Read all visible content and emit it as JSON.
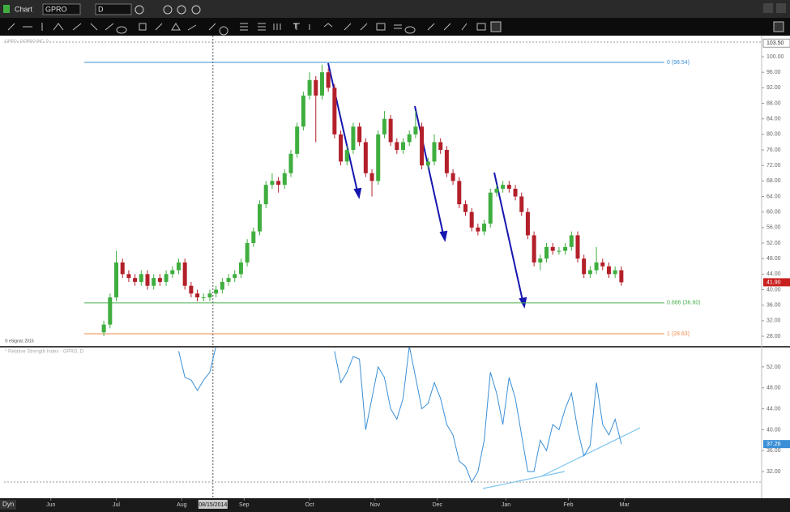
{
  "toolbar": {
    "window_title": "Chart",
    "symbol": "GPRO",
    "interval": "D"
  },
  "footer": {
    "mode": "Dyn"
  },
  "chart_data": [
    {
      "type": "candlestick",
      "title": "GPRO - GOPRO INC, D",
      "watermark": "© eSignal, 2015",
      "up_color": "#3fae3f",
      "down_color": "#b3202a",
      "xlim": [
        0,
        243
      ],
      "ylim": [
        25.5,
        104.6
      ],
      "yticks": [
        {
          "value": 100,
          "label": "100.00"
        },
        {
          "value": 96,
          "label": "96.00"
        },
        {
          "value": 92,
          "label": "92.00"
        },
        {
          "value": 88,
          "label": "88.00"
        },
        {
          "value": 84,
          "label": "84.00"
        },
        {
          "value": 80,
          "label": "80.00"
        },
        {
          "value": 76,
          "label": "76.00"
        },
        {
          "value": 72,
          "label": "72.00"
        },
        {
          "value": 68,
          "label": "68.00"
        },
        {
          "value": 64,
          "label": "64.00"
        },
        {
          "value": 60,
          "label": "60.00"
        },
        {
          "value": 56,
          "label": "56.00"
        },
        {
          "value": 52,
          "label": "52.00"
        },
        {
          "value": 48,
          "label": "48.00"
        },
        {
          "value": 44,
          "label": "44.00"
        },
        {
          "value": 40,
          "label": "40.00"
        },
        {
          "value": 36,
          "label": "36.00"
        },
        {
          "value": 32,
          "label": "32.00"
        },
        {
          "value": 28,
          "label": "28.00"
        }
      ],
      "top_label": {
        "value": 103.5,
        "label": "103.50"
      },
      "last": {
        "value": 41.9,
        "label": "41.90",
        "color": "#c8201e"
      },
      "crosshair": {
        "x": 67,
        "label": "08/15/2014"
      },
      "levels": [
        {
          "value": 98.54,
          "label": "0 (98.54)",
          "color": "#3a8fd6"
        },
        {
          "value": 36.6,
          "label": "0.886 (36.60)",
          "color": "#4caf50"
        },
        {
          "value": 28.63,
          "label": "1 (28.63)",
          "color": "#f08a4b"
        }
      ],
      "x": [
        32,
        34,
        36,
        38,
        40,
        42,
        44,
        46,
        48,
        50,
        52,
        54,
        56,
        58,
        60,
        62,
        64,
        66,
        68,
        70,
        72,
        74,
        76,
        78,
        80,
        82,
        84,
        86,
        88,
        90,
        92,
        94,
        96,
        98,
        100,
        102,
        104,
        106,
        108,
        110,
        112,
        114,
        116,
        118,
        120,
        122,
        124,
        126,
        128,
        130,
        132,
        134,
        136,
        138,
        140,
        142,
        144,
        146,
        148,
        150,
        152,
        154,
        156,
        158,
        160,
        162,
        164,
        166,
        168,
        170,
        172,
        174,
        176,
        178,
        180,
        182,
        184,
        186,
        188,
        190,
        192,
        194,
        196,
        198
      ],
      "open": [
        29,
        31,
        38,
        47,
        44,
        43,
        42,
        44,
        41,
        43,
        42,
        44,
        45,
        47,
        41,
        39,
        38,
        38,
        39,
        40,
        42,
        43,
        44,
        47,
        52,
        55,
        62,
        67,
        68,
        67,
        70,
        75,
        82,
        90,
        94,
        90,
        96,
        92,
        80,
        73,
        76,
        82,
        78,
        70,
        68,
        80,
        84,
        78,
        76,
        78,
        80,
        82,
        72,
        73,
        78,
        76,
        70,
        68,
        62,
        60,
        56,
        55,
        57,
        65,
        66,
        67,
        66,
        64,
        60,
        54,
        47,
        48,
        51,
        50,
        50,
        51,
        54,
        48,
        44,
        45,
        47,
        46,
        44,
        45
      ],
      "high": [
        32,
        39,
        50,
        48,
        45,
        44,
        45,
        45,
        44,
        44,
        45,
        46,
        48,
        48,
        42,
        40,
        39,
        40,
        41,
        43,
        44,
        45,
        48,
        53,
        56,
        63,
        68,
        70,
        69,
        71,
        76,
        83,
        91,
        96,
        95,
        98,
        97,
        93,
        81,
        77,
        83,
        83,
        79,
        71,
        81,
        86,
        85,
        79,
        79,
        81,
        86,
        83,
        74,
        80,
        79,
        77,
        71,
        69,
        63,
        61,
        57,
        58,
        66,
        67,
        68,
        68,
        67,
        65,
        61,
        55,
        49,
        52,
        52,
        51,
        52,
        55,
        55,
        49,
        46,
        51,
        48,
        47,
        46,
        46
      ],
      "low": [
        28,
        30,
        37,
        43,
        42,
        41,
        41,
        40,
        40,
        41,
        41,
        43,
        44,
        40,
        38,
        37,
        37,
        37,
        38,
        39,
        41,
        42,
        43,
        46,
        51,
        54,
        61,
        66,
        65,
        66,
        69,
        74,
        81,
        89,
        78,
        89,
        91,
        79,
        72,
        72,
        75,
        77,
        69,
        64,
        67,
        79,
        77,
        75,
        75,
        77,
        79,
        71,
        71,
        72,
        75,
        69,
        67,
        61,
        59,
        55,
        54,
        54,
        56,
        64,
        65,
        65,
        63,
        59,
        53,
        46,
        45,
        47,
        49,
        49,
        49,
        50,
        47,
        43,
        43,
        44,
        45,
        43,
        43,
        41
      ],
      "close": [
        31,
        38,
        47,
        44,
        43,
        42,
        44,
        41,
        43,
        42,
        44,
        45,
        47,
        41,
        39,
        38,
        38,
        39,
        40,
        42,
        43,
        44,
        47,
        52,
        55,
        62,
        67,
        68,
        67,
        70,
        75,
        82,
        90,
        94,
        90,
        96,
        92,
        80,
        73,
        76,
        82,
        78,
        70,
        68,
        80,
        84,
        78,
        76,
        78,
        80,
        82,
        72,
        73,
        78,
        76,
        70,
        68,
        62,
        60,
        56,
        55,
        57,
        65,
        66,
        67,
        66,
        64,
        60,
        54,
        47,
        48,
        51,
        50,
        50,
        51,
        54,
        48,
        44,
        45,
        47,
        46,
        44,
        45,
        41.9
      ]
    },
    {
      "type": "line",
      "title": "* Relative Strength Index - GPRO, D",
      "color": "#3a8fd6",
      "xlim": [
        0,
        243
      ],
      "ylim": [
        29.7,
        55.7
      ],
      "yticks": [
        {
          "value": 52,
          "label": "52.00"
        },
        {
          "value": 48,
          "label": "48.00"
        },
        {
          "value": 44,
          "label": "44.00"
        },
        {
          "value": 40,
          "label": "40.00"
        },
        {
          "value": 36,
          "label": "36.00"
        },
        {
          "value": 32,
          "label": "32.00"
        }
      ],
      "xticks": [
        {
          "value": 15,
          "label": "Jun"
        },
        {
          "value": 36,
          "label": "Jul"
        },
        {
          "value": 57,
          "label": "Aug"
        },
        {
          "value": 77,
          "label": "Sep"
        },
        {
          "value": 98,
          "label": "Oct"
        },
        {
          "value": 119,
          "label": "Nov"
        },
        {
          "value": 139,
          "label": "Dec"
        },
        {
          "value": 161,
          "label": "Jan"
        },
        {
          "value": 181,
          "label": "Feb"
        },
        {
          "value": 199,
          "label": "Mar"
        }
      ],
      "last": {
        "value": 37.26,
        "label": "37.26",
        "color": "#3a8fd6"
      },
      "x": [
        32,
        34,
        36,
        38,
        40,
        42,
        44,
        46,
        48,
        50,
        52,
        54,
        56,
        58,
        60,
        62,
        64,
        66,
        68,
        70,
        72,
        74,
        76,
        78,
        80,
        82,
        84,
        86,
        88,
        90,
        92,
        94,
        96,
        98,
        100,
        102,
        104,
        106,
        108,
        110,
        112,
        114,
        116,
        118,
        120,
        122,
        124,
        126,
        128,
        130,
        132,
        134,
        136,
        138,
        140,
        142,
        144,
        146,
        148,
        150,
        152,
        154,
        156,
        158,
        160,
        162,
        164,
        166,
        168,
        170,
        172,
        174,
        176,
        178,
        180,
        182,
        184,
        186,
        188,
        190,
        192,
        194,
        196,
        198
      ],
      "values": [
        null,
        null,
        null,
        null,
        null,
        null,
        null,
        null,
        null,
        null,
        null,
        null,
        55,
        50,
        49.5,
        47.5,
        49.5,
        51,
        56,
        null,
        null,
        null,
        null,
        null,
        null,
        null,
        null,
        null,
        null,
        null,
        null,
        null,
        null,
        null,
        null,
        null,
        null,
        55,
        49,
        51,
        54,
        53.5,
        40,
        46,
        52,
        50,
        44,
        42,
        46,
        56,
        50,
        44,
        45,
        49,
        46,
        41,
        39,
        34,
        33,
        30,
        32,
        38,
        51,
        47,
        41,
        50,
        46,
        39,
        32,
        32,
        38,
        36,
        41,
        40,
        44,
        47,
        40,
        35,
        37,
        49,
        41,
        39,
        42,
        37.26
      ]
    }
  ]
}
